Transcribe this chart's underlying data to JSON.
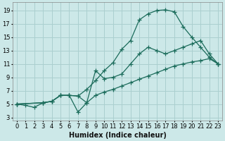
{
  "bg_color": "#cce8e8",
  "grid_color": "#aacfcf",
  "line_color": "#1a6b5a",
  "line_width": 0.9,
  "marker": "+",
  "marker_size": 4,
  "marker_edge_width": 0.9,
  "xlabel": "Humidex (Indice chaleur)",
  "xlabel_fontsize": 7,
  "tick_fontsize": 6,
  "xlim": [
    -0.5,
    23.5
  ],
  "ylim": [
    2.5,
    20.2
  ],
  "xticks": [
    0,
    1,
    2,
    3,
    4,
    5,
    6,
    7,
    8,
    9,
    10,
    11,
    12,
    13,
    14,
    15,
    16,
    17,
    18,
    19,
    20,
    21,
    22,
    23
  ],
  "yticks": [
    3,
    5,
    7,
    9,
    11,
    13,
    15,
    17,
    19
  ],
  "curve1_x": [
    0,
    1,
    2,
    3,
    4,
    5,
    6,
    7,
    8,
    9,
    10,
    11,
    12,
    13,
    14,
    15,
    16,
    17,
    18,
    19,
    20,
    21,
    22,
    23
  ],
  "curve1_y": [
    5,
    4.8,
    4.5,
    5.2,
    5.4,
    6.3,
    6.3,
    6.2,
    7.2,
    8.5,
    10,
    11.2,
    13.2,
    14.5,
    17.6,
    18.5,
    19.0,
    19.1,
    18.8,
    16.6,
    15.0,
    13.5,
    12.0,
    11.0
  ],
  "curve2_x": [
    0,
    3,
    4,
    5,
    6,
    7,
    8,
    9,
    10,
    11,
    12,
    13,
    14,
    15,
    16,
    17,
    18,
    19,
    20,
    21,
    22,
    23
  ],
  "curve2_y": [
    5,
    5.2,
    5.4,
    6.3,
    6.3,
    6.2,
    5.2,
    10.0,
    8.8,
    9.0,
    9.5,
    11.0,
    12.5,
    13.5,
    13.0,
    12.5,
    13.0,
    13.5,
    14.0,
    14.5,
    12.5,
    11.0
  ],
  "curve3_x": [
    0,
    3,
    4,
    5,
    6,
    7,
    8,
    9,
    10,
    11,
    12,
    13,
    14,
    15,
    16,
    17,
    18,
    19,
    20,
    21,
    22,
    23
  ],
  "curve3_y": [
    5,
    5.2,
    5.4,
    6.3,
    6.3,
    3.8,
    5.2,
    6.3,
    6.8,
    7.2,
    7.7,
    8.2,
    8.7,
    9.2,
    9.7,
    10.2,
    10.7,
    11.0,
    11.3,
    11.5,
    11.8,
    11.0
  ]
}
